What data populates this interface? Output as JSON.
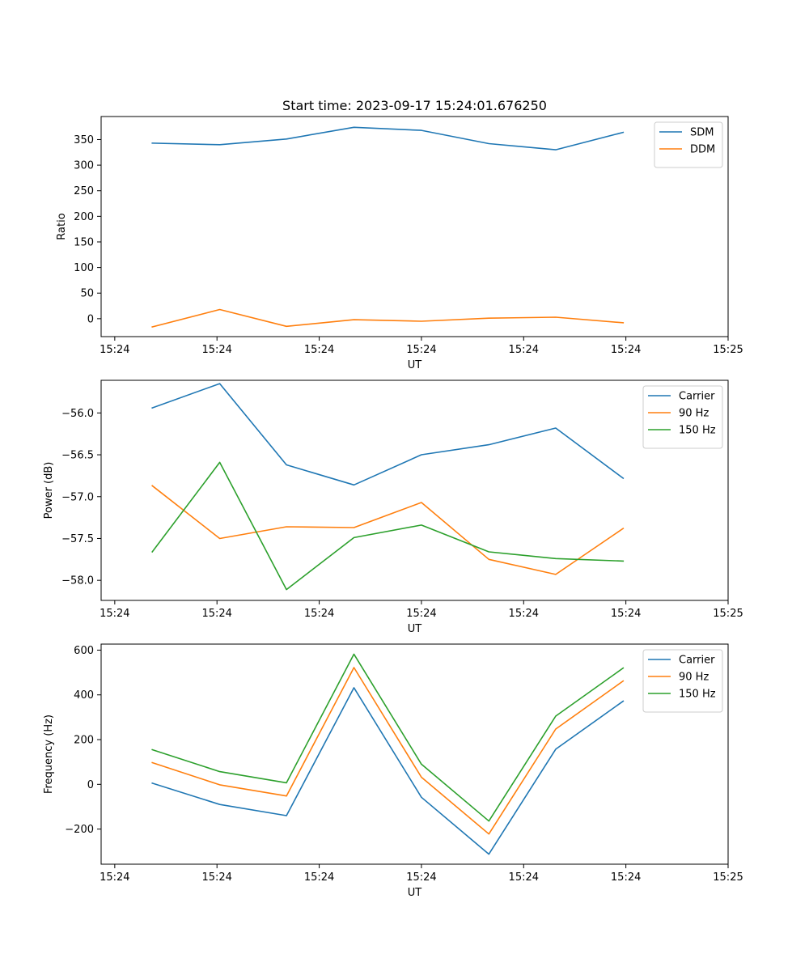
{
  "chart_data": [
    {
      "type": "line",
      "title": "Start time: 2023-09-17 15:24:01.676250",
      "xlabel": "UT",
      "ylabel": "Ratio",
      "xlim": [
        0,
        9.2
      ],
      "x": [
        0.75,
        1.74,
        2.72,
        3.71,
        4.7,
        5.69,
        6.67,
        7.66
      ],
      "x_ticks": [
        {
          "value": 0.2,
          "label": "15:24"
        },
        {
          "value": 1.7,
          "label": "15:24"
        },
        {
          "value": 3.2,
          "label": "15:24"
        },
        {
          "value": 4.7,
          "label": "15:24"
        },
        {
          "value": 6.2,
          "label": "15:24"
        },
        {
          "value": 7.7,
          "label": "15:24"
        },
        {
          "value": 9.2,
          "label": "15:25"
        }
      ],
      "ylim": [
        -35,
        395
      ],
      "y_ticks": [
        0,
        50,
        100,
        150,
        200,
        250,
        300,
        350
      ],
      "legend_position": "upper right",
      "series": [
        {
          "name": "SDM",
          "color": "#1f77b4",
          "values": [
            343,
            340,
            351,
            374,
            368,
            342,
            330,
            364
          ]
        },
        {
          "name": "DDM",
          "color": "#ff7f0e",
          "values": [
            -16,
            18,
            -15,
            -2,
            -5,
            1,
            3,
            -8
          ]
        }
      ]
    },
    {
      "type": "line",
      "title": "",
      "xlabel": "UT",
      "ylabel": "Power (dB)",
      "xlim": [
        0,
        9.2
      ],
      "x": [
        0.75,
        1.74,
        2.72,
        3.71,
        4.7,
        5.69,
        6.67,
        7.66
      ],
      "x_ticks": [
        {
          "value": 0.2,
          "label": "15:24"
        },
        {
          "value": 1.7,
          "label": "15:24"
        },
        {
          "value": 3.2,
          "label": "15:24"
        },
        {
          "value": 4.7,
          "label": "15:24"
        },
        {
          "value": 6.2,
          "label": "15:24"
        },
        {
          "value": 7.7,
          "label": "15:24"
        },
        {
          "value": 9.2,
          "label": "15:25"
        }
      ],
      "ylim": [
        -58.24,
        -55.61
      ],
      "y_ticks": [
        -58.0,
        -57.5,
        -57.0,
        -56.5,
        -56.0
      ],
      "y_tick_labels": [
        "−58.0",
        "−57.5",
        "−57.0",
        "−56.5",
        "−56.0"
      ],
      "legend_position": "upper right",
      "series": [
        {
          "name": "Carrier",
          "color": "#1f77b4",
          "values": [
            -55.94,
            -55.65,
            -56.62,
            -56.86,
            -56.5,
            -56.38,
            -56.18,
            -56.78
          ]
        },
        {
          "name": "90 Hz",
          "color": "#ff7f0e",
          "values": [
            -56.87,
            -57.5,
            -57.36,
            -57.37,
            -57.07,
            -57.75,
            -57.93,
            -57.38
          ]
        },
        {
          "name": "150 Hz",
          "color": "#2ca02c",
          "values": [
            -57.66,
            -56.59,
            -58.11,
            -57.49,
            -57.34,
            -57.66,
            -57.74,
            -57.77
          ]
        }
      ]
    },
    {
      "type": "line",
      "title": "",
      "xlabel": "UT",
      "ylabel": "Frequency (Hz)",
      "xlim": [
        0,
        9.2
      ],
      "x": [
        0.75,
        1.74,
        2.72,
        3.71,
        4.7,
        5.69,
        6.67,
        7.66
      ],
      "x_ticks": [
        {
          "value": 0.2,
          "label": "15:24"
        },
        {
          "value": 1.7,
          "label": "15:24"
        },
        {
          "value": 3.2,
          "label": "15:24"
        },
        {
          "value": 4.7,
          "label": "15:24"
        },
        {
          "value": 6.2,
          "label": "15:24"
        },
        {
          "value": 7.7,
          "label": "15:24"
        },
        {
          "value": 9.2,
          "label": "15:25"
        }
      ],
      "ylim": [
        -357,
        627
      ],
      "y_ticks": [
        -200,
        0,
        200,
        400,
        600
      ],
      "y_tick_labels": [
        "−200",
        "0",
        "200",
        "400",
        "600"
      ],
      "legend_position": "upper right",
      "series": [
        {
          "name": "Carrier",
          "color": "#1f77b4",
          "values": [
            5,
            -90,
            -140,
            432,
            -58,
            -312,
            157,
            372
          ]
        },
        {
          "name": "90 Hz",
          "color": "#ff7f0e",
          "values": [
            97,
            -2,
            -52,
            522,
            32,
            -222,
            247,
            462
          ]
        },
        {
          "name": "150 Hz",
          "color": "#2ca02c",
          "values": [
            155,
            57,
            7,
            582,
            90,
            -164,
            305,
            520
          ]
        }
      ]
    }
  ]
}
